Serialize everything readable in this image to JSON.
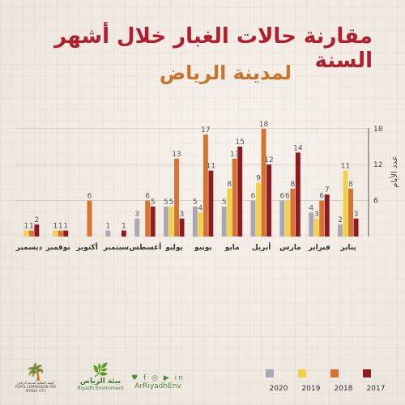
{
  "title": "مقارنة حالات الغبار خلال أشهر السنة",
  "subtitle": "لمدينة الرياض",
  "chart_data": {
    "type": "bar",
    "ylabel": "عدد الأيام",
    "yticks": [
      6,
      12,
      18
    ],
    "ylim": [
      0,
      20
    ],
    "categories": [
      "يناير",
      "فبراير",
      "مارس",
      "أبريل",
      "مايو",
      "يونيو",
      "يوليو",
      "أغسطس",
      "سبتمبر",
      "أكتوبر",
      "نوفمبر",
      "ديسمبر"
    ],
    "series": [
      {
        "name": "2017",
        "color": "#8e1b22",
        "values": [
          3,
          7,
          14,
          12,
          15,
          11,
          3,
          5,
          1,
          0,
          1,
          2
        ]
      },
      {
        "name": "2018",
        "color": "#d7722f",
        "values": [
          8,
          6,
          8,
          18,
          13,
          17,
          13,
          6,
          0,
          6,
          1,
          1
        ]
      },
      {
        "name": "2019",
        "color": "#f2d14a",
        "values": [
          11,
          3,
          6,
          9,
          8,
          4,
          5,
          0,
          0,
          0,
          1,
          1
        ]
      },
      {
        "name": "2020",
        "color": "#a9a7b3",
        "values": [
          2,
          4,
          6,
          6,
          5,
          5,
          5,
          3,
          1,
          0,
          0,
          0
        ]
      }
    ],
    "legend_position": "bottom-right"
  },
  "footer": {
    "gov_emblem": "🌴",
    "gov_name": "الهيئة الملكية لمدينة الرياض",
    "gov_name_en": "ROYAL COMMISSION FOR RIYADH CITY",
    "env_icon": "🌿",
    "env_name": "بيئة الرياض",
    "env_name_en": "Riyadh Enviroment",
    "social_icons": "♥ f ◎ ▶ in",
    "handle": "ArRiyadhEnv"
  }
}
